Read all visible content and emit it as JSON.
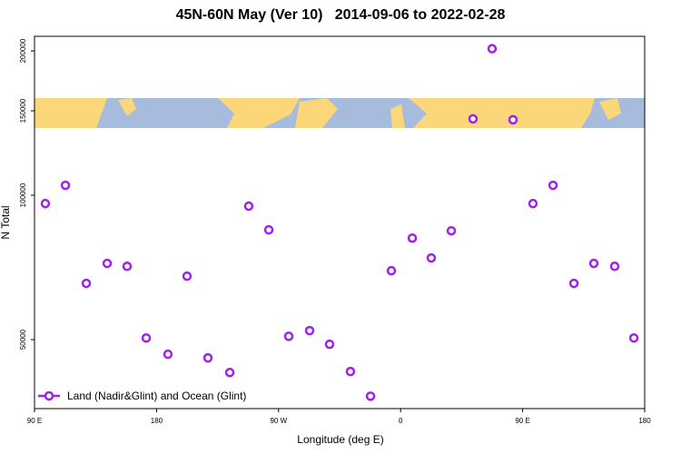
{
  "chart_data": {
    "type": "scatter",
    "title": "45N-60N May (Ver 10)   2014-09-06 to 2022-02-28",
    "x_label": "Longitude (deg E)",
    "y_label": "N Total",
    "xlim": [
      90,
      540
    ],
    "xticks": [
      {
        "value": 90,
        "label": "90 E"
      },
      {
        "value": 180,
        "label": "180"
      },
      {
        "value": 270,
        "label": "90 W"
      },
      {
        "value": 360,
        "label": "0"
      },
      {
        "value": 450,
        "label": "90 E"
      },
      {
        "value": 540,
        "label": "180"
      }
    ],
    "ylim": [
      35900,
      214500
    ],
    "yticks": [
      50000,
      100000,
      150000,
      200000
    ],
    "y_scale": "log",
    "legend_position": "lower left",
    "series": [
      {
        "name": "Land (Nadir&Glint) and Ocean (Glint)",
        "color": "#a020f0",
        "x": [
          98,
          112.8,
          128.2,
          143.6,
          158.3,
          172.4,
          188.4,
          202.5,
          217.9,
          234,
          248,
          262.8,
          277.5,
          292.9,
          307.6,
          323,
          337.8,
          353.2,
          368.6,
          382.6,
          397.4,
          413.4,
          427.5,
          442.9,
          457.6,
          472.4,
          487.8,
          502.5,
          517.9,
          532
        ],
        "values": [
          96100,
          104900,
          65500,
          72100,
          71100,
          50400,
          46600,
          67800,
          45800,
          42700,
          94900,
          84700,
          50800,
          52200,
          48900,
          42900,
          38100,
          69600,
          81400,
          74000,
          84300,
          144300,
          202100,
          143700,
          96100,
          104900,
          65500,
          72100,
          71100,
          50400
        ]
      }
    ]
  }
}
